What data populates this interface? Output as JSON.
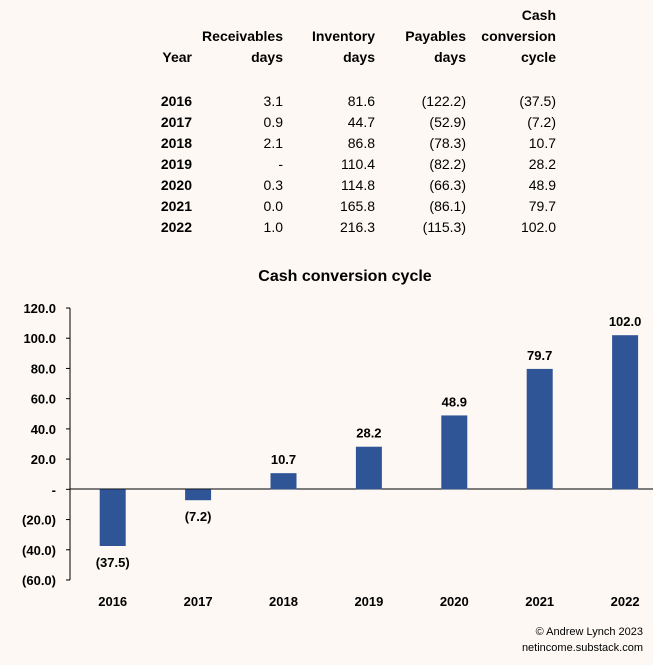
{
  "table": {
    "headers": [
      "Year",
      "Receivables\ndays",
      "Inventory\ndays",
      "Payables\ndays",
      "Cash\nconversion\ncycle"
    ],
    "rows": [
      [
        "2016",
        "3.1",
        "81.6",
        "(122.2)",
        "(37.5)"
      ],
      [
        "2017",
        "0.9",
        "44.7",
        "(52.9)",
        "(7.2)"
      ],
      [
        "2018",
        "2.1",
        "86.8",
        "(78.3)",
        "10.7"
      ],
      [
        "2019",
        "-",
        "110.4",
        "(82.2)",
        "28.2"
      ],
      [
        "2020",
        "0.3",
        "114.8",
        "(66.3)",
        "48.9"
      ],
      [
        "2021",
        "0.0",
        "165.8",
        "(86.1)",
        "79.7"
      ],
      [
        "2022",
        "1.0",
        "216.3",
        "(115.3)",
        "102.0"
      ]
    ]
  },
  "chart_data": {
    "type": "bar",
    "title": "Cash conversion cycle",
    "categories": [
      "2016",
      "2017",
      "2018",
      "2019",
      "2020",
      "2021",
      "2022"
    ],
    "values": [
      -37.5,
      -7.2,
      10.7,
      28.2,
      48.9,
      79.7,
      102.0
    ],
    "value_labels": [
      "(37.5)",
      "(7.2)",
      "10.7",
      "28.2",
      "48.9",
      "79.7",
      "102.0"
    ],
    "ylim": [
      -60,
      120
    ],
    "yticks": [
      -60,
      -40,
      -20,
      0,
      20,
      40,
      60,
      80,
      100,
      120
    ],
    "ytick_labels": [
      "(60.0)",
      "(40.0)",
      "(20.0)",
      "-",
      "20.0",
      "40.0",
      "60.0",
      "80.0",
      "100.0",
      "120.0"
    ],
    "grid": false,
    "bar_color": "#2f5597",
    "xlabel": "",
    "ylabel": ""
  },
  "footer": {
    "credit": "© Andrew Lynch 2023",
    "site": "netincome.substack.com"
  }
}
